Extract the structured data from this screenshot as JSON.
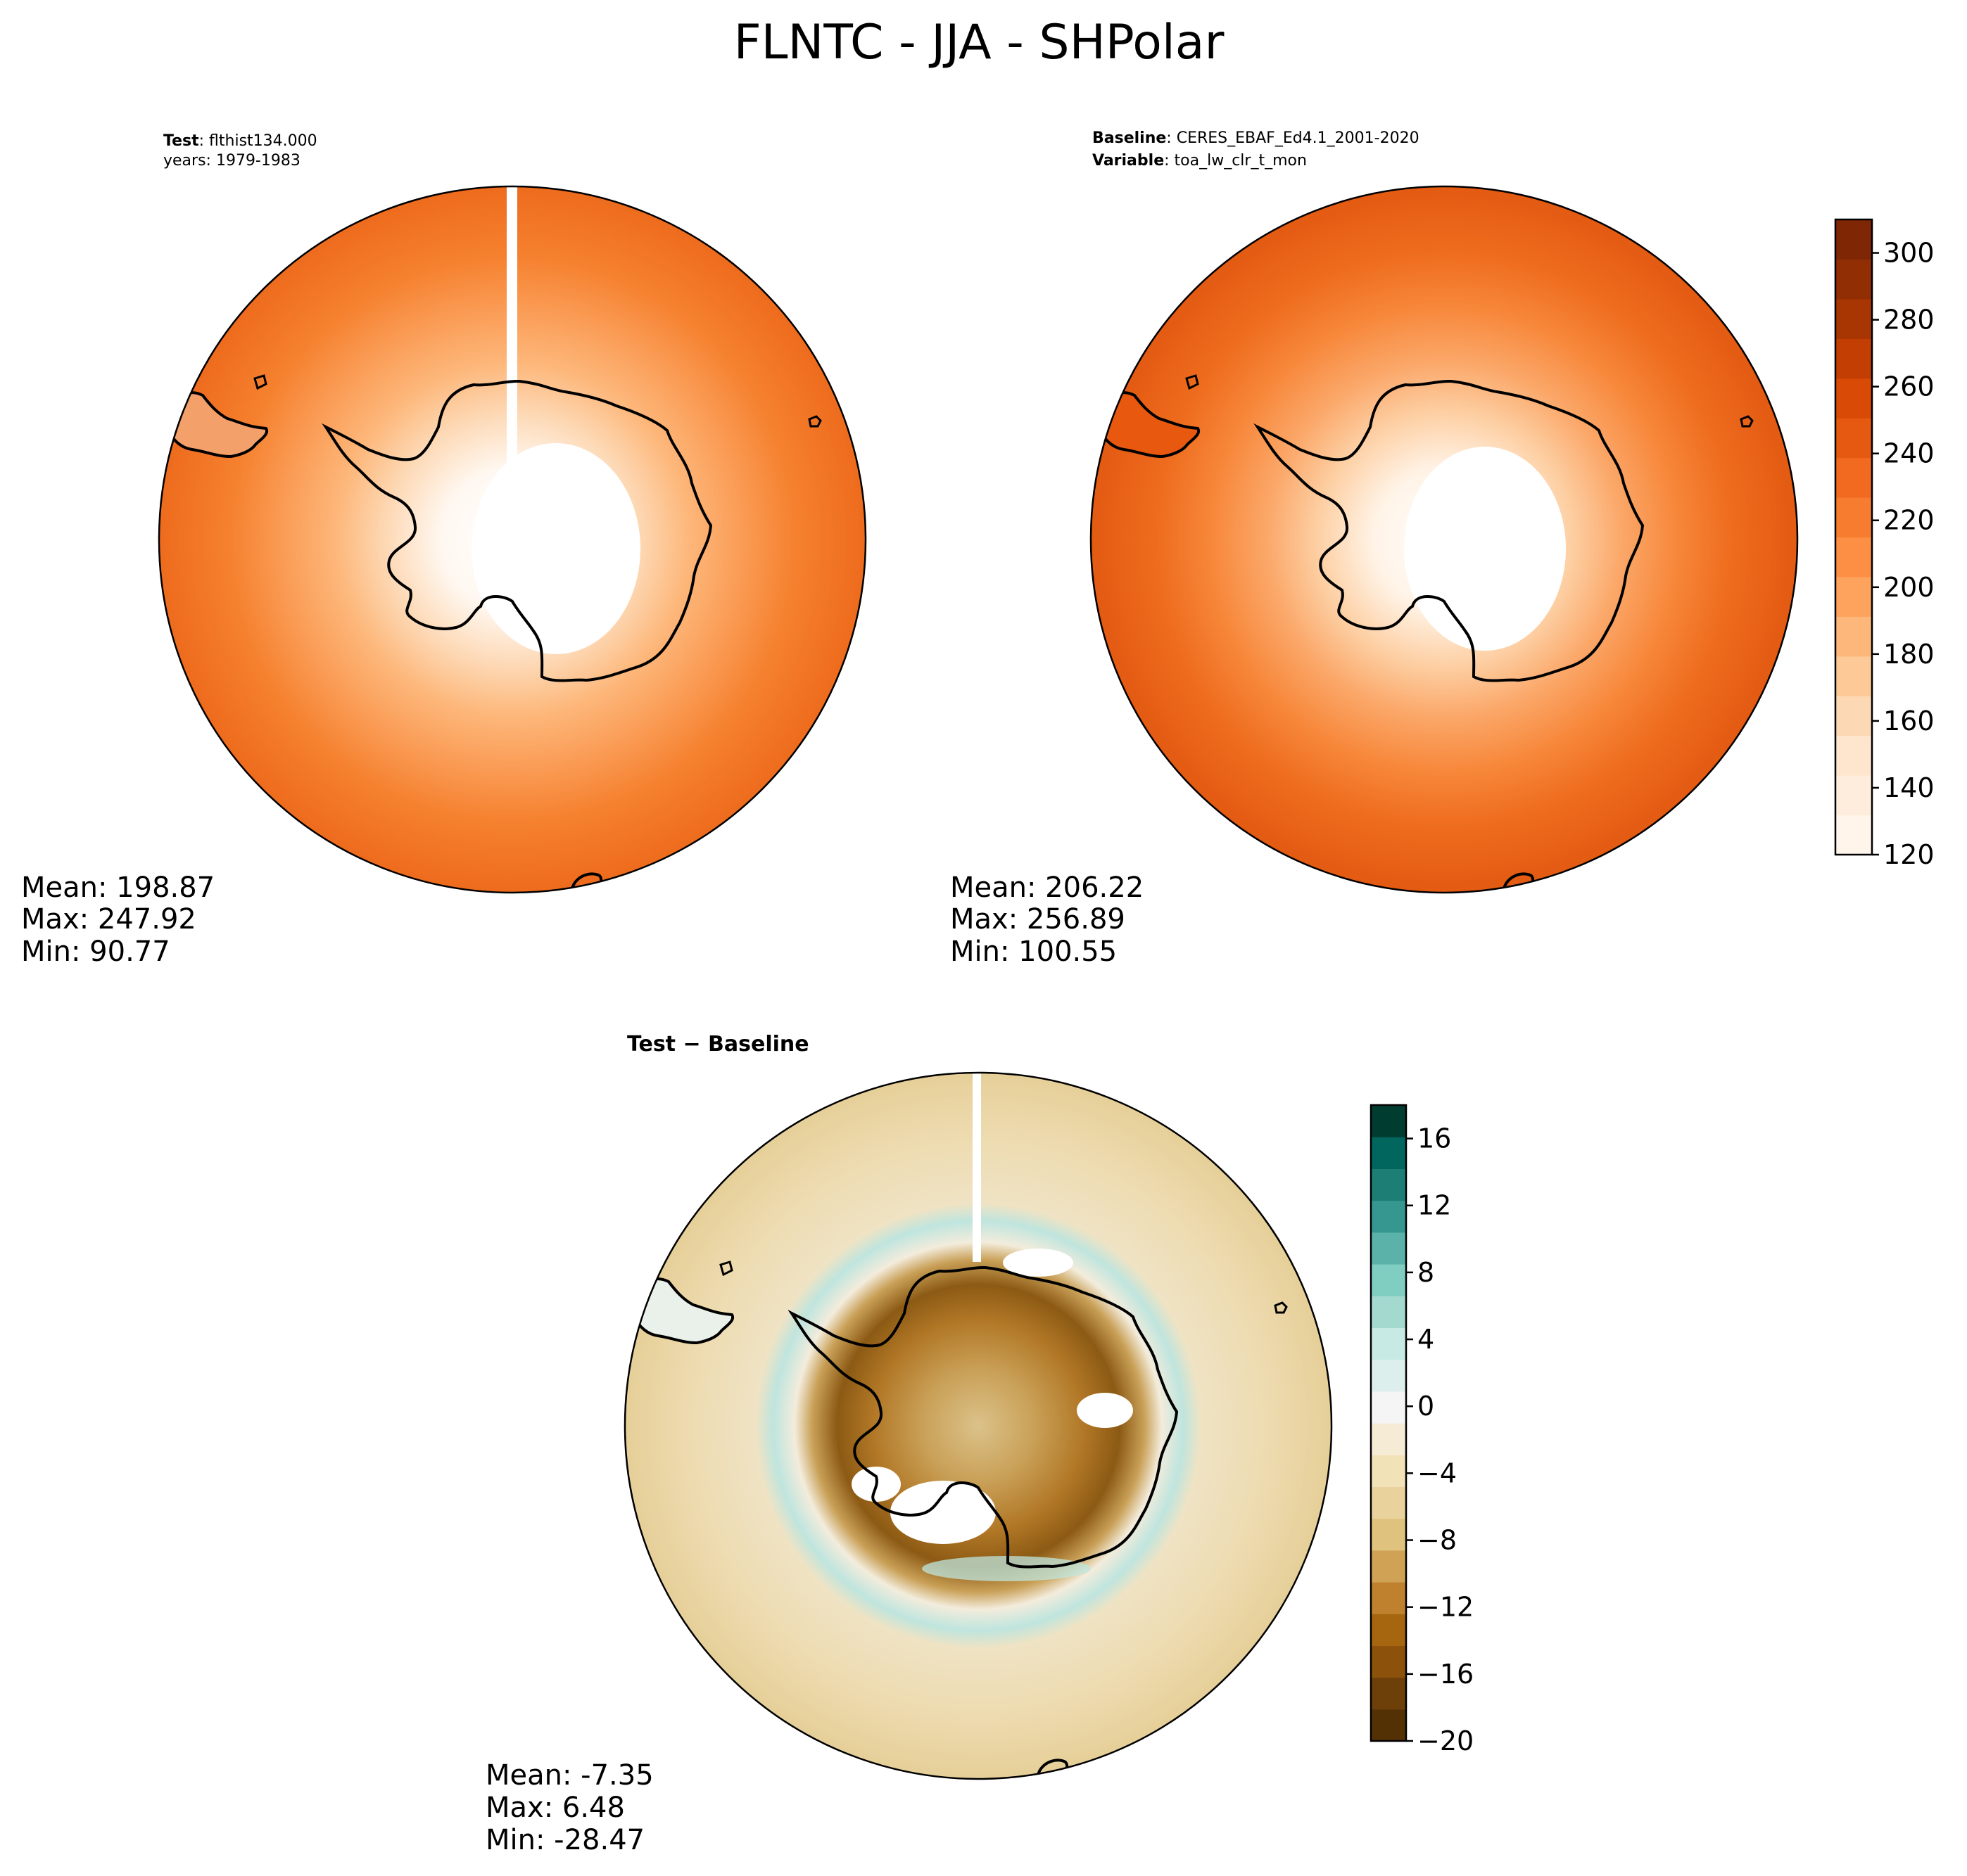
{
  "title": "FLNTC - JJA - SHPolar",
  "chart_data": [
    {
      "type": "polar contour map",
      "panel": "test",
      "label_bold": "Test",
      "label_text": ": flthist134.000",
      "subtitle": "years: 1979-1983",
      "stats": {
        "mean": "Mean: 198.87",
        "max": "Max: 247.92",
        "min": "Min: 90.77"
      }
    },
    {
      "type": "polar contour map",
      "panel": "baseline",
      "label_bold": "Baseline",
      "label_text": ": CERES_EBAF_Ed4.1_2001-2020",
      "label2_bold": "Variable",
      "label2_text": ": toa_lw_clr_t_mon",
      "stats": {
        "mean": "Mean: 206.22",
        "max": "Max: 256.89",
        "min": "Min: 100.55"
      },
      "colorbar": {
        "range": [
          120,
          310
        ],
        "ticks": [
          "120",
          "140",
          "160",
          "180",
          "200",
          "220",
          "240",
          "260",
          "280",
          "300"
        ],
        "tick_values": [
          120,
          140,
          160,
          180,
          200,
          220,
          240,
          260,
          280,
          300
        ],
        "colors": [
          "#fff5eb",
          "#feeddc",
          "#fee6ce",
          "#fdd8b4",
          "#fdc997",
          "#fdb77a",
          "#fda35e",
          "#fd8f45",
          "#f87c2f",
          "#f16a1f",
          "#e65910",
          "#d84a05",
          "#c23e03",
          "#a83603",
          "#922e04",
          "#7f2704"
        ]
      }
    },
    {
      "type": "polar contour map",
      "panel": "difference",
      "label_bold": "Test",
      "label_text": " − Baseline",
      "stats": {
        "mean": "Mean: -7.35",
        "max": "Max:  6.48",
        "min": "Min: -28.47"
      },
      "colorbar": {
        "range": [
          -20,
          18
        ],
        "ticks": [
          "−20",
          "−16",
          "−12",
          "−8",
          "−4",
          "0",
          "4",
          "8",
          "12",
          "16"
        ],
        "tick_values": [
          -20,
          -16,
          -12,
          -8,
          -4,
          0,
          4,
          8,
          12,
          16
        ],
        "colors": [
          "#543005",
          "#6d3f09",
          "#8c510a",
          "#a6650f",
          "#bf812d",
          "#cfa255",
          "#dfc27d",
          "#ead29c",
          "#f2e2b8",
          "#f6ecd5",
          "#f5f5f5",
          "#dcefec",
          "#c7eae5",
          "#a4d9d0",
          "#80cdc1",
          "#5ab2a8",
          "#35978f",
          "#1d7e75",
          "#01665e",
          "#003c30"
        ]
      }
    }
  ]
}
